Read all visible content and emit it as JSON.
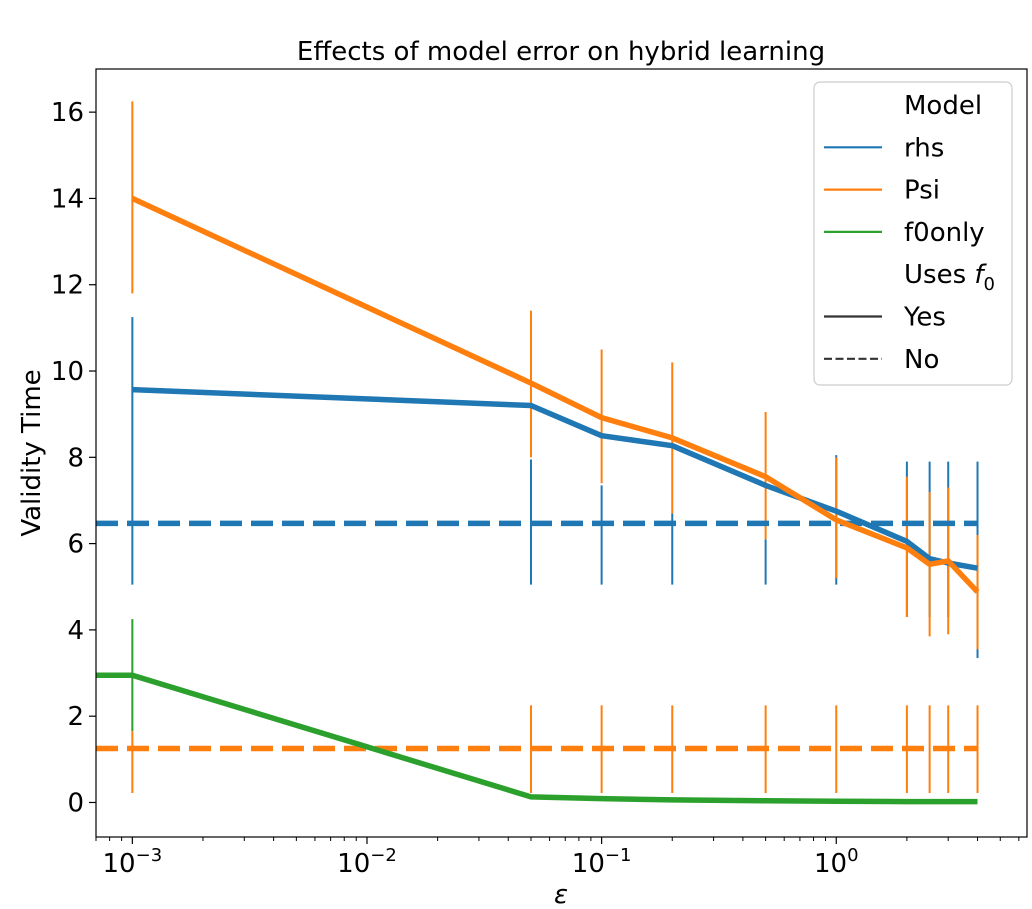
{
  "chart_data": {
    "type": "line",
    "title": "Effects of model error on hybrid learning",
    "xlabel": "ε",
    "ylabel": "Validity Time",
    "xscale": "log",
    "xlim": [
      0.0007,
      6.5
    ],
    "ylim": [
      -0.8,
      17
    ],
    "yticks": [
      0,
      2,
      4,
      6,
      8,
      10,
      12,
      14,
      16
    ],
    "xticks": [
      {
        "value": 0.001,
        "base": "10",
        "exp": "−3"
      },
      {
        "value": 0.01,
        "base": "10",
        "exp": "−2"
      },
      {
        "value": 0.1,
        "base": "10",
        "exp": "−1"
      },
      {
        "value": 1,
        "base": "10",
        "exp": "0"
      }
    ],
    "colors": {
      "rhs": "#1f77b4",
      "Psi": "#ff7f0e",
      "f0only": "#2ca02c",
      "neutral": "#333333"
    },
    "x": [
      0.001,
      0.05,
      0.1,
      0.2,
      0.5,
      1.0,
      2.0,
      2.5,
      3.0,
      4.0
    ],
    "series": [
      {
        "name": "rhs",
        "uses_f0": "Yes",
        "color": "#1f77b4",
        "values": [
          9.57,
          9.2,
          8.5,
          8.27,
          7.35,
          6.75,
          6.05,
          5.65,
          5.55,
          5.43
        ],
        "err_low": [
          5.05,
          5.05,
          5.05,
          5.05,
          5.05,
          5.05,
          4.3,
          4.3,
          4.3,
          3.35
        ],
        "err_high": [
          11.25,
          7.95,
          7.35,
          6.7,
          6.1,
          8.05,
          7.9,
          7.9,
          7.9,
          7.9
        ]
      },
      {
        "name": "Psi",
        "uses_f0": "Yes",
        "color": "#ff7f0e",
        "values": [
          14.0,
          9.72,
          8.92,
          8.45,
          7.55,
          6.55,
          5.9,
          5.52,
          5.6,
          4.88
        ],
        "err_low": [
          11.8,
          8.0,
          7.4,
          6.7,
          6.1,
          5.2,
          4.3,
          3.85,
          3.9,
          3.55
        ],
        "err_high": [
          16.25,
          11.4,
          10.5,
          10.2,
          9.05,
          8.0,
          7.55,
          7.2,
          7.3,
          6.2
        ]
      },
      {
        "name": "f0only",
        "uses_f0": "Yes",
        "color": "#2ca02c",
        "x": [
          0.0007,
          0.001,
          0.05,
          0.1,
          0.2,
          0.5,
          1.0,
          2.0,
          2.5,
          3.0,
          4.0
        ],
        "values": [
          2.95,
          2.95,
          0.13,
          0.09,
          0.06,
          0.04,
          0.03,
          0.02,
          0.02,
          0.02,
          0.02
        ],
        "err_x": [
          0.001
        ],
        "err_low": [
          1.65
        ],
        "err_high": [
          4.25
        ]
      }
    ],
    "baselines": [
      {
        "name": "rhs",
        "uses_f0": "No",
        "color": "#1f77b4",
        "value": 6.47,
        "x_range": [
          0.0007,
          4.0
        ]
      },
      {
        "name": "Psi",
        "uses_f0": "No",
        "color": "#ff7f0e",
        "value": 1.25,
        "x_range": [
          0.0007,
          4.0
        ],
        "err_x": [
          0.001,
          0.05,
          0.1,
          0.2,
          0.5,
          1.0,
          2.0,
          2.5,
          3.0,
          4.0
        ],
        "err_low": [
          0.22,
          0.22,
          0.22,
          0.22,
          0.22,
          0.22,
          0.22,
          0.22,
          0.22,
          0.22
        ],
        "err_high": [
          1.65,
          2.25,
          2.25,
          2.25,
          2.25,
          2.25,
          2.25,
          2.25,
          2.25,
          2.25
        ]
      }
    ],
    "legend": {
      "placement": "top-right",
      "entries": [
        {
          "label": "Model",
          "kind": "header"
        },
        {
          "label": "rhs",
          "kind": "line",
          "color": "#1f77b4",
          "style": "solid"
        },
        {
          "label": "Psi",
          "kind": "line",
          "color": "#ff7f0e",
          "style": "solid"
        },
        {
          "label": "f0only",
          "kind": "line",
          "color": "#2ca02c",
          "style": "solid"
        },
        {
          "label": "Uses",
          "kind": "header",
          "math": "f",
          "math_sub": "0"
        },
        {
          "label": "Yes",
          "kind": "line",
          "color": "#333333",
          "style": "solid"
        },
        {
          "label": "No",
          "kind": "line",
          "color": "#333333",
          "style": "dashed"
        }
      ]
    }
  }
}
